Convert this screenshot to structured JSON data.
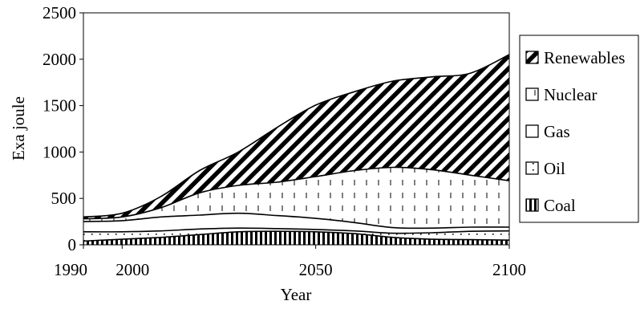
{
  "chart_data": {
    "type": "area",
    "stacked": true,
    "title": "",
    "xlabel": "Year",
    "ylabel": "Exa joule",
    "xlim": [
      1990,
      2100
    ],
    "ylim": [
      0,
      2500
    ],
    "x_ticks": [
      1990,
      2000,
      2050,
      2100
    ],
    "y_ticks": [
      0,
      500,
      1000,
      1500,
      2000,
      2500
    ],
    "grid": false,
    "legend_position": "right",
    "x": [
      1990,
      2000,
      2010,
      2020,
      2030,
      2040,
      2050,
      2060,
      2070,
      2080,
      2090,
      2100
    ],
    "series": [
      {
        "name": "Coal",
        "pattern": "vertical-stripes",
        "values": [
          40,
          60,
          80,
          110,
          140,
          145,
          140,
          120,
          80,
          60,
          55,
          50
        ]
      },
      {
        "name": "Oil",
        "pattern": "dots",
        "values": [
          100,
          80,
          70,
          60,
          40,
          30,
          25,
          30,
          45,
          70,
          90,
          100
        ]
      },
      {
        "name": "Gas",
        "pattern": "white",
        "values": [
          110,
          120,
          150,
          150,
          160,
          140,
          120,
          90,
          60,
          50,
          45,
          40
        ]
      },
      {
        "name": "Nuclear",
        "pattern": "tick-lines",
        "values": [
          30,
          40,
          100,
          240,
          300,
          360,
          450,
          560,
          650,
          630,
          560,
          500
        ]
      },
      {
        "name": "Renewables",
        "pattern": "diagonal-stripes",
        "values": [
          20,
          40,
          120,
          240,
          360,
          590,
          770,
          850,
          930,
          1000,
          1100,
          1360
        ]
      }
    ]
  }
}
